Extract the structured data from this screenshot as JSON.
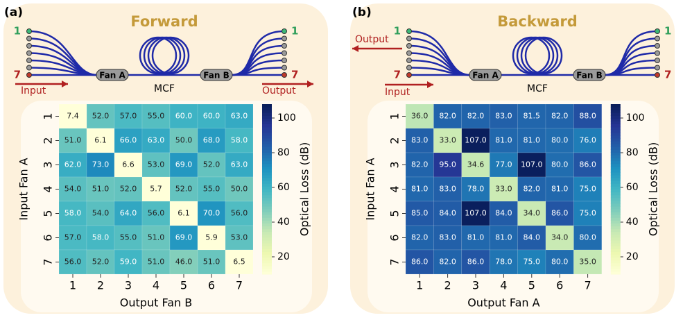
{
  "chart_data": [
    {
      "type": "heatmap",
      "panel": "(a)",
      "xlabel": "Output Fan B",
      "ylabel": "Input Fan A",
      "colorbar_label": "Optical Loss (dB)",
      "colormap": "YlGnBu",
      "x_categories": [
        "1",
        "2",
        "3",
        "4",
        "5",
        "6",
        "7"
      ],
      "y_categories": [
        "1",
        "2",
        "3",
        "4",
        "5",
        "6",
        "7"
      ],
      "clim": [
        10,
        108
      ],
      "cticks": [
        20,
        40,
        60,
        80,
        100
      ],
      "values": [
        [
          7.4,
          52,
          57,
          55,
          60,
          60,
          63
        ],
        [
          51,
          6.1,
          66,
          63,
          50,
          68,
          58
        ],
        [
          62,
          73,
          6.6,
          53,
          69,
          52,
          63
        ],
        [
          54,
          51,
          52,
          5.7,
          52,
          55,
          50
        ],
        [
          58,
          54,
          64,
          56,
          6.1,
          70,
          56
        ],
        [
          57,
          58,
          55,
          51,
          69,
          5.9,
          53
        ],
        [
          56,
          52,
          59,
          51,
          46,
          51,
          6.5
        ]
      ],
      "value_labels": [
        [
          "7.4",
          "52.0",
          "57.0",
          "55.0",
          "60.0",
          "60.0",
          "63.0"
        ],
        [
          "51.0",
          "6.1",
          "66.0",
          "63.0",
          "50.0",
          "68.0",
          "58.0"
        ],
        [
          "62.0",
          "73.0",
          "6.6",
          "53.0",
          "69.0",
          "52.0",
          "63.0"
        ],
        [
          "54.0",
          "51.0",
          "52.0",
          "5.7",
          "52.0",
          "55.0",
          "50.0"
        ],
        [
          "58.0",
          "54.0",
          "64.0",
          "56.0",
          "6.1",
          "70.0",
          "56.0"
        ],
        [
          "57.0",
          "58.0",
          "55.0",
          "51.0",
          "69.0",
          "5.9",
          "53.0"
        ],
        [
          "56.0",
          "52.0",
          "59.0",
          "51.0",
          "46.0",
          "51.0",
          "6.5"
        ]
      ]
    },
    {
      "type": "heatmap",
      "panel": "(b)",
      "xlabel": "Output Fan A",
      "ylabel": "Input Fan A",
      "colorbar_label": "Optical Loss (dB)",
      "colormap": "YlGnBu",
      "x_categories": [
        "1",
        "2",
        "3",
        "4",
        "5",
        "6",
        "7"
      ],
      "y_categories": [
        "1",
        "2",
        "3",
        "4",
        "5",
        "6",
        "7"
      ],
      "clim": [
        10,
        108
      ],
      "cticks": [
        20,
        40,
        60,
        80,
        100
      ],
      "values": [
        [
          36,
          82,
          82,
          83,
          81.5,
          82,
          88
        ],
        [
          83,
          33,
          107,
          81,
          81,
          80,
          76
        ],
        [
          82,
          95,
          34.6,
          77,
          107,
          80,
          86
        ],
        [
          81,
          83,
          78,
          33,
          82,
          81,
          75
        ],
        [
          85,
          84,
          107,
          84,
          34,
          86,
          75
        ],
        [
          82,
          83,
          81,
          81,
          84,
          34,
          80
        ],
        [
          86,
          82,
          86,
          78,
          75,
          80,
          35
        ]
      ],
      "value_labels": [
        [
          "36.0",
          "82.0",
          "82.0",
          "83.0",
          "81.5",
          "82.0",
          "88.0"
        ],
        [
          "83.0",
          "33.0",
          "107.0",
          "81.0",
          "81.0",
          "80.0",
          "76.0"
        ],
        [
          "82.0",
          "95.0",
          "34.6",
          "77.0",
          "107.0",
          "80.0",
          "86.0"
        ],
        [
          "81.0",
          "83.0",
          "78.0",
          "33.0",
          "82.0",
          "81.0",
          "75.0"
        ],
        [
          "85.0",
          "84.0",
          "107.0",
          "84.0",
          "34.0",
          "86.0",
          "75.0"
        ],
        [
          "82.0",
          "83.0",
          "81.0",
          "81.0",
          "84.0",
          "34.0",
          "80.0"
        ],
        [
          "86.0",
          "82.0",
          "86.0",
          "78.0",
          "75.0",
          "80.0",
          "35.0"
        ]
      ]
    }
  ],
  "diagrams": [
    {
      "title": "Forward",
      "fan_left": "Fan A",
      "fan_right": "Fan B",
      "fiber": "MCF",
      "input": "Input",
      "output": "Output",
      "port_first": "1",
      "port_last": "7"
    },
    {
      "title": "Backward",
      "fan_left": "Fan A",
      "fan_right": "Fan B",
      "fiber": "MCF",
      "input": "Input",
      "output": "Output",
      "port_first": "1",
      "port_last": "7"
    }
  ]
}
